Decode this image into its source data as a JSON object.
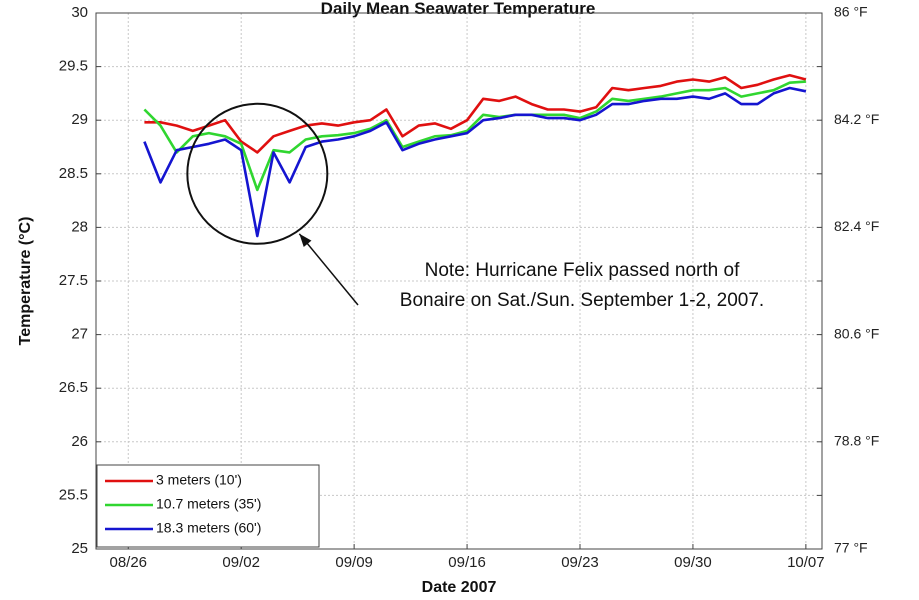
{
  "chart_data": {
    "type": "line",
    "title": "Daily Mean Seawater Temperature",
    "xlabel": "Date 2007",
    "ylabel": "Temperature (°C)",
    "ylim": [
      25,
      30
    ],
    "xlim": [
      "2007-08-24",
      "2007-10-08"
    ],
    "x_ticks": [
      "08/26",
      "09/02",
      "09/09",
      "09/16",
      "09/23",
      "09/30",
      "10/07"
    ],
    "y_ticks": [
      "25",
      "25.5",
      "26",
      "26.5",
      "27",
      "27.5",
      "28",
      "28.5",
      "29",
      "29.5",
      "30"
    ],
    "y2_ticks": [
      "77 °F",
      "78.8 °F",
      "80.6 °F",
      "82.4 °F",
      "84.2 °F",
      "86 °F"
    ],
    "grid": true,
    "legend_position": "bottom-left",
    "annotation": {
      "lines": [
        "Note: Hurricane Felix passed north of",
        "Bonaire on Sat./Sun. September 1-2, 2007."
      ],
      "circled_date": "2007-09-03",
      "circled_temperature": 28.5
    },
    "series": [
      {
        "name": "3 meters (10')",
        "color": "#e01010",
        "x": [
          "2007-08-27",
          "2007-08-28",
          "2007-08-29",
          "2007-08-30",
          "2007-08-31",
          "2007-09-01",
          "2007-09-02",
          "2007-09-03",
          "2007-09-04",
          "2007-09-05",
          "2007-09-06",
          "2007-09-07",
          "2007-09-08",
          "2007-09-09",
          "2007-09-10",
          "2007-09-11",
          "2007-09-12",
          "2007-09-13",
          "2007-09-14",
          "2007-09-15",
          "2007-09-16",
          "2007-09-17",
          "2007-09-18",
          "2007-09-19",
          "2007-09-20",
          "2007-09-21",
          "2007-09-22",
          "2007-09-23",
          "2007-09-24",
          "2007-09-25",
          "2007-09-26",
          "2007-09-27",
          "2007-09-28",
          "2007-09-29",
          "2007-09-30",
          "2007-10-01",
          "2007-10-02",
          "2007-10-03",
          "2007-10-04",
          "2007-10-05",
          "2007-10-06",
          "2007-10-07"
        ],
        "values": [
          28.98,
          28.98,
          28.95,
          28.9,
          28.95,
          29.0,
          28.8,
          28.7,
          28.85,
          28.9,
          28.95,
          28.97,
          28.95,
          28.98,
          29.0,
          29.1,
          28.85,
          28.95,
          28.97,
          28.92,
          29.0,
          29.2,
          29.18,
          29.22,
          29.15,
          29.1,
          29.1,
          29.08,
          29.12,
          29.3,
          29.28,
          29.3,
          29.32,
          29.36,
          29.38,
          29.36,
          29.4,
          29.3,
          29.33,
          29.38,
          29.42,
          29.38
        ]
      },
      {
        "name": "10.7 meters (35')",
        "color": "#30d630",
        "x": [
          "2007-08-27",
          "2007-08-28",
          "2007-08-29",
          "2007-08-30",
          "2007-08-31",
          "2007-09-01",
          "2007-09-02",
          "2007-09-03",
          "2007-09-04",
          "2007-09-05",
          "2007-09-06",
          "2007-09-07",
          "2007-09-08",
          "2007-09-09",
          "2007-09-10",
          "2007-09-11",
          "2007-09-12",
          "2007-09-13",
          "2007-09-14",
          "2007-09-15",
          "2007-09-16",
          "2007-09-17",
          "2007-09-18",
          "2007-09-19",
          "2007-09-20",
          "2007-09-21",
          "2007-09-22",
          "2007-09-23",
          "2007-09-24",
          "2007-09-25",
          "2007-09-26",
          "2007-09-27",
          "2007-09-28",
          "2007-09-29",
          "2007-09-30",
          "2007-10-01",
          "2007-10-02",
          "2007-10-03",
          "2007-10-04",
          "2007-10-05",
          "2007-10-06",
          "2007-10-07"
        ],
        "values": [
          29.1,
          28.95,
          28.7,
          28.85,
          28.88,
          28.85,
          28.78,
          28.35,
          28.72,
          28.7,
          28.82,
          28.85,
          28.86,
          28.88,
          28.92,
          29.0,
          28.75,
          28.8,
          28.85,
          28.86,
          28.9,
          29.05,
          29.03,
          29.05,
          29.05,
          29.05,
          29.05,
          29.02,
          29.08,
          29.2,
          29.18,
          29.2,
          29.22,
          29.25,
          29.28,
          29.28,
          29.3,
          29.22,
          29.25,
          29.28,
          29.35,
          29.36
        ]
      },
      {
        "name": "18.3 meters (60')",
        "color": "#1515d0",
        "x": [
          "2007-08-27",
          "2007-08-28",
          "2007-08-29",
          "2007-08-30",
          "2007-08-31",
          "2007-09-01",
          "2007-09-02",
          "2007-09-03",
          "2007-09-04",
          "2007-09-05",
          "2007-09-06",
          "2007-09-07",
          "2007-09-08",
          "2007-09-09",
          "2007-09-10",
          "2007-09-11",
          "2007-09-12",
          "2007-09-13",
          "2007-09-14",
          "2007-09-15",
          "2007-09-16",
          "2007-09-17",
          "2007-09-18",
          "2007-09-19",
          "2007-09-20",
          "2007-09-21",
          "2007-09-22",
          "2007-09-23",
          "2007-09-24",
          "2007-09-25",
          "2007-09-26",
          "2007-09-27",
          "2007-09-28",
          "2007-09-29",
          "2007-09-30",
          "2007-10-01",
          "2007-10-02",
          "2007-10-03",
          "2007-10-04",
          "2007-10-05",
          "2007-10-06",
          "2007-10-07"
        ],
        "values": [
          28.8,
          28.42,
          28.72,
          28.75,
          28.78,
          28.82,
          28.72,
          27.92,
          28.7,
          28.42,
          28.75,
          28.8,
          28.82,
          28.85,
          28.9,
          28.98,
          28.72,
          28.78,
          28.82,
          28.85,
          28.88,
          29.0,
          29.02,
          29.05,
          29.05,
          29.02,
          29.02,
          29.0,
          29.05,
          29.15,
          29.15,
          29.18,
          29.2,
          29.2,
          29.22,
          29.2,
          29.25,
          29.15,
          29.15,
          29.25,
          29.3,
          29.27
        ]
      }
    ]
  }
}
